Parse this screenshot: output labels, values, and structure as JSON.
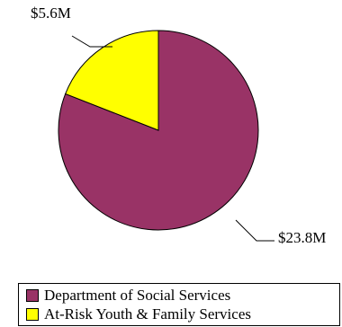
{
  "chart_data": {
    "type": "pie",
    "title": "",
    "slices": [
      {
        "name": "Department of Social Services",
        "value": 23.8,
        "label": "$23.8M",
        "color": "#993366"
      },
      {
        "name": "At-Risk Youth & Family Services",
        "value": 5.6,
        "label": "$5.6M",
        "color": "#ffff00"
      }
    ],
    "legend_placement": "bottom",
    "start": "12 o'clock, clockwise"
  }
}
